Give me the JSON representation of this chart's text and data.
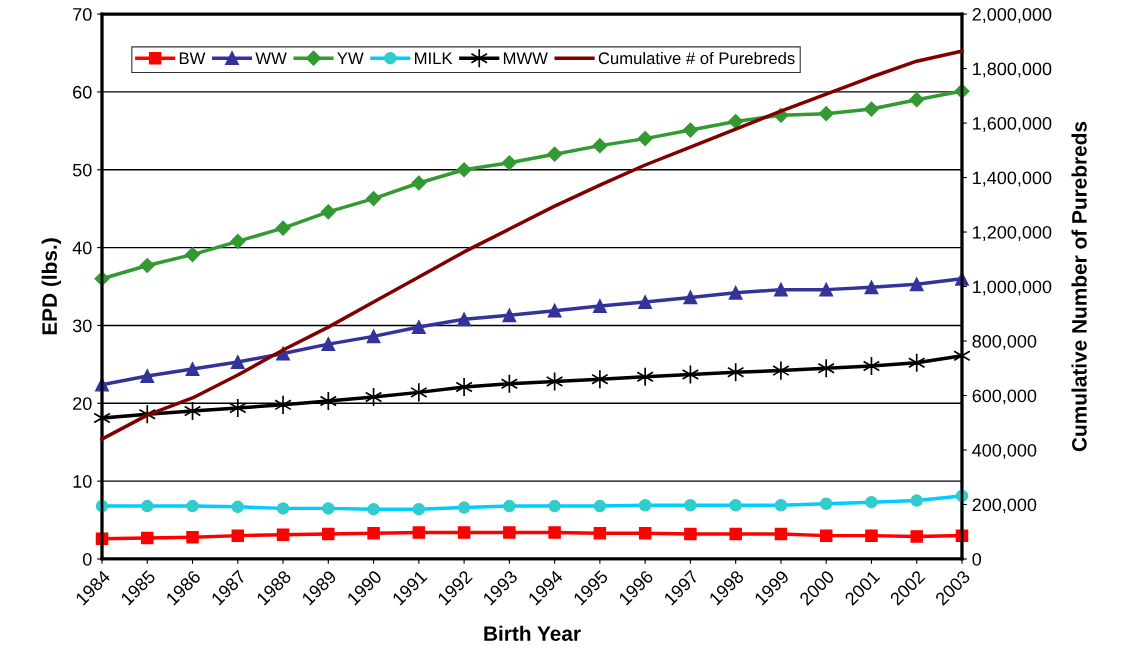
{
  "chart_data": {
    "type": "line",
    "xlabel": "Birth Year",
    "ylabel": "EPD (lbs.)",
    "y2label": "Cumulative Number of Purebreds",
    "categories": [
      "1984",
      "1985",
      "1986",
      "1987",
      "1988",
      "1989",
      "1990",
      "1991",
      "1992",
      "1993",
      "1994",
      "1995",
      "1996",
      "1997",
      "1998",
      "1999",
      "2000",
      "2001",
      "2002",
      "2003"
    ],
    "series": [
      {
        "name": "BW",
        "color": "#ff0000",
        "marker": "square",
        "values": [
          2.6,
          2.7,
          2.8,
          3.0,
          3.1,
          3.2,
          3.3,
          3.4,
          3.4,
          3.4,
          3.4,
          3.3,
          3.3,
          3.2,
          3.2,
          3.2,
          3.0,
          3.0,
          2.9,
          3.0
        ]
      },
      {
        "name": "WW",
        "color": "#333399",
        "marker": "triangle",
        "values": [
          22.4,
          23.5,
          24.4,
          25.3,
          26.4,
          27.6,
          28.6,
          29.8,
          30.8,
          31.3,
          31.9,
          32.5,
          33.0,
          33.6,
          34.2,
          34.6,
          34.6,
          34.9,
          35.3,
          36.0
        ]
      },
      {
        "name": "YW",
        "color": "#339933",
        "marker": "diamond",
        "values": [
          36.0,
          37.7,
          39.1,
          40.8,
          42.5,
          44.6,
          46.3,
          48.3,
          50.0,
          50.9,
          52.0,
          53.1,
          54.0,
          55.1,
          56.2,
          57.0,
          57.2,
          57.8,
          59.0,
          60.1
        ]
      },
      {
        "name": "MILK",
        "color": "#00ccff",
        "marker": "circle",
        "values": [
          6.8,
          6.8,
          6.8,
          6.7,
          6.5,
          6.5,
          6.4,
          6.4,
          6.6,
          6.8,
          6.8,
          6.8,
          6.9,
          6.9,
          6.9,
          6.9,
          7.1,
          7.3,
          7.5,
          8.1
        ]
      },
      {
        "name": "MWW",
        "color": "#000000",
        "marker": "cross",
        "values": [
          18.1,
          18.6,
          19.0,
          19.4,
          19.8,
          20.3,
          20.8,
          21.4,
          22.1,
          22.5,
          22.8,
          23.1,
          23.4,
          23.7,
          24.0,
          24.2,
          24.5,
          24.8,
          25.2,
          26.1
        ]
      },
      {
        "name": "Cumulative # of Purebreds",
        "color": "#800000",
        "marker": "none",
        "axis": "y2",
        "values": [
          440000,
          528000,
          591000,
          675000,
          767000,
          851000,
          943000,
          1035000,
          1127000,
          1211000,
          1295000,
          1372000,
          1446000,
          1512000,
          1578000,
          1644000,
          1706000,
          1769000,
          1827000,
          1864000
        ]
      }
    ],
    "ylim": [
      0,
      70
    ],
    "yticks": [
      0,
      10,
      20,
      30,
      40,
      50,
      60,
      70
    ],
    "y2lim": [
      0,
      2000000
    ],
    "y2ticks": [
      0,
      {
        "value": 200000,
        "label": "200,000"
      },
      {
        "value": 400000,
        "label": "400,000"
      },
      {
        "value": 600000,
        "label": "600,000"
      },
      {
        "value": 800000,
        "label": "800,000"
      },
      {
        "value": 1000000,
        "label": "1,000,000"
      },
      {
        "value": 1200000,
        "label": "1,200,000"
      },
      {
        "value": 1400000,
        "label": "1,400,000"
      },
      {
        "value": 1600000,
        "label": "1,600,000"
      },
      {
        "value": 1800000,
        "label": "1,800,000"
      },
      {
        "value": 2000000,
        "label": "2,000,000"
      }
    ],
    "grid": "y",
    "legend": "top left",
    "line_style": "solid"
  }
}
